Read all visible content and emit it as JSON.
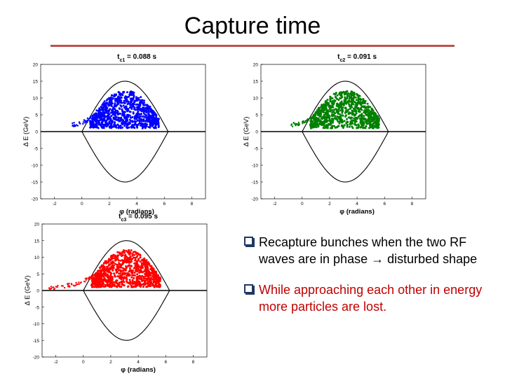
{
  "slide": {
    "title": "Capture time",
    "rule_color": "#c0504d"
  },
  "bullets": [
    {
      "text": "Recapture bunches when the two RF waves are in phase → disturbed shape",
      "color": "#000000",
      "icon": "checkbox-bullet-icon"
    },
    {
      "text": "While approaching each other in energy more particles are lost.",
      "color": "#c00000",
      "icon": "checkbox-bullet-icon"
    }
  ],
  "chart_data": [
    {
      "type": "scatter",
      "title": "t_c1 = 0.088 s",
      "title_main": "t",
      "title_sub": "c1",
      "title_rest": " = 0.088 s",
      "xlabel": "φ (radians)",
      "ylabel": "Δ E (GeV)",
      "xlim": [
        -3,
        9
      ],
      "ylim": [
        -20,
        20
      ],
      "xticks": [
        -2,
        0,
        2,
        4,
        6,
        8
      ],
      "yticks": [
        20,
        15,
        10,
        5,
        0,
        -5,
        -10,
        -15,
        -20
      ],
      "color": "#0000ff",
      "separatrix_peak": 15,
      "separatrix_phi": [
        0,
        6.28
      ],
      "bunch": {
        "phi_range": [
          -0.5,
          5.5
        ],
        "de_range": [
          1,
          12
        ]
      }
    },
    {
      "type": "scatter",
      "title": "t_c2 = 0.091 s",
      "title_main": "t",
      "title_sub": "c2",
      "title_rest": " = 0.091 s",
      "xlabel": "φ (radians)",
      "ylabel": "Δ E (GeV)",
      "xlim": [
        -3,
        9
      ],
      "ylim": [
        -20,
        20
      ],
      "xticks": [
        -2,
        0,
        2,
        4,
        6,
        8
      ],
      "yticks": [
        20,
        15,
        10,
        5,
        0,
        -5,
        -10,
        -15,
        -20
      ],
      "color": "#008000",
      "separatrix_peak": 15,
      "separatrix_phi": [
        0,
        6.28
      ],
      "bunch": {
        "phi_range": [
          -0.5,
          5.5
        ],
        "de_range": [
          1,
          12
        ]
      }
    },
    {
      "type": "scatter",
      "title": "t_c3 = 0.095 s",
      "title_main": "t",
      "title_sub": "c3",
      "title_rest": " = 0.095 s",
      "xlabel": "φ (radians)",
      "ylabel": "Δ E (GeV)",
      "xlim": [
        -3,
        9
      ],
      "ylim": [
        -20,
        20
      ],
      "xticks": [
        -2,
        0,
        2,
        4,
        6,
        8
      ],
      "yticks": [
        20,
        15,
        10,
        5,
        0,
        -5,
        -10,
        -15,
        -20
      ],
      "color": "#ff0000",
      "separatrix_peak": 15,
      "separatrix_phi": [
        0,
        6.28
      ],
      "bunch": {
        "phi_range": [
          -2.5,
          5.5
        ],
        "de_range": [
          0,
          12
        ]
      }
    }
  ]
}
